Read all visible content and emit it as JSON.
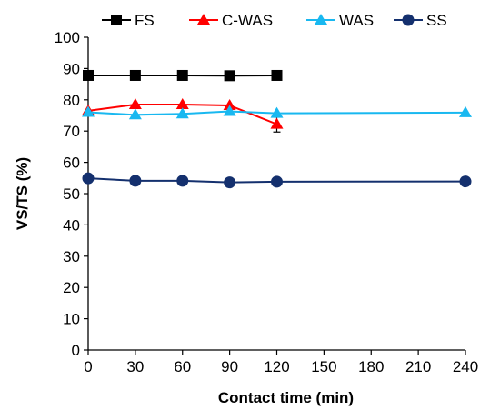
{
  "chart_data": {
    "type": "line",
    "title": "",
    "xlabel": "Contact time (min)",
    "ylabel": "VS/TS (%)",
    "x_ticks": [
      "0",
      "30",
      "60",
      "90",
      "120",
      "150",
      "180",
      "210",
      "240"
    ],
    "y_ticks": [
      "0",
      "10",
      "20",
      "30",
      "40",
      "50",
      "60",
      "70",
      "80",
      "90",
      "100"
    ],
    "xlim": [
      0,
      240
    ],
    "ylim": [
      0,
      100
    ],
    "grid": false,
    "legend_position": "top",
    "series": [
      {
        "name": "FS",
        "color": "#000000",
        "marker": "square",
        "x": [
          0,
          30,
          60,
          90,
          120
        ],
        "values": [
          87.8,
          87.8,
          87.8,
          87.7,
          87.8
        ]
      },
      {
        "name": "C-WAS",
        "color": "#ff0000",
        "marker": "triangle",
        "x": [
          0,
          30,
          60,
          90,
          120
        ],
        "values": [
          76.5,
          78.5,
          78.5,
          78.2,
          72.2
        ],
        "error": [
          0,
          0,
          0,
          0,
          2.5
        ]
      },
      {
        "name": "WAS",
        "color": "#19b8f0",
        "marker": "triangle",
        "x": [
          0,
          30,
          60,
          90,
          120,
          240
        ],
        "values": [
          76.0,
          75.2,
          75.5,
          76.3,
          75.7,
          75.9
        ]
      },
      {
        "name": "SS",
        "color": "#14306e",
        "marker": "circle",
        "x": [
          0,
          30,
          60,
          90,
          120,
          240
        ],
        "values": [
          54.9,
          54.1,
          54.1,
          53.6,
          53.8,
          53.9
        ]
      }
    ]
  }
}
